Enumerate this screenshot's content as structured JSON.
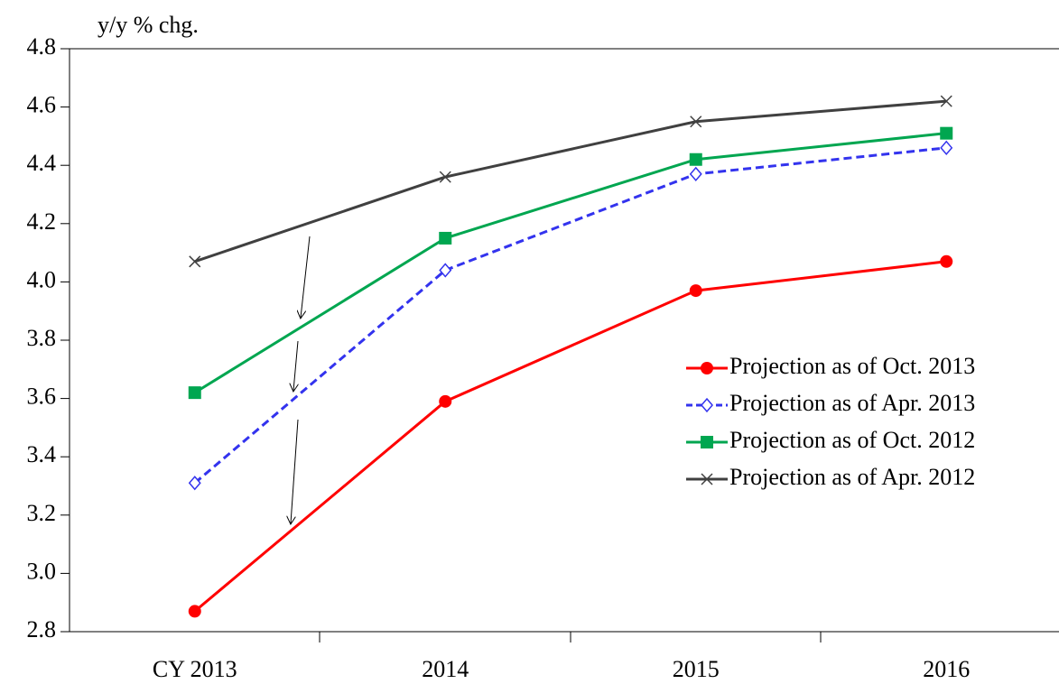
{
  "chart_data": {
    "type": "line",
    "y_axis_label": "y/y % chg.",
    "categories": [
      "CY 2013",
      "2014",
      "2015",
      "2016"
    ],
    "ylim": [
      2.8,
      4.8
    ],
    "yticks": [
      2.8,
      {
        "value": 3,
        "label": "3.0"
      },
      3.2,
      3.4,
      3.6,
      3.8,
      {
        "value": 4,
        "label": "4.0"
      },
      4.2,
      4.4,
      4.6,
      4.8
    ],
    "legend": "right",
    "series": [
      {
        "name": "Projection as of Oct. 2013",
        "color": "#ff0000",
        "marker": "circle",
        "dashed": false,
        "values": [
          2.87,
          3.59,
          3.97,
          4.07
        ]
      },
      {
        "name": "Projection as of Apr. 2013",
        "color": "#3333ee",
        "marker": "diamond",
        "dashed": true,
        "values": [
          3.31,
          4.04,
          4.37,
          4.46
        ]
      },
      {
        "name": "Projection as of Oct. 2012",
        "color": "#00a650",
        "marker": "square",
        "dashed": false,
        "values": [
          3.62,
          4.15,
          4.42,
          4.51
        ]
      },
      {
        "name": "Projection as of Apr. 2012",
        "color": "#404040",
        "marker": "x",
        "dashed": false,
        "values": [
          4.07,
          4.36,
          4.55,
          4.62
        ]
      }
    ]
  }
}
